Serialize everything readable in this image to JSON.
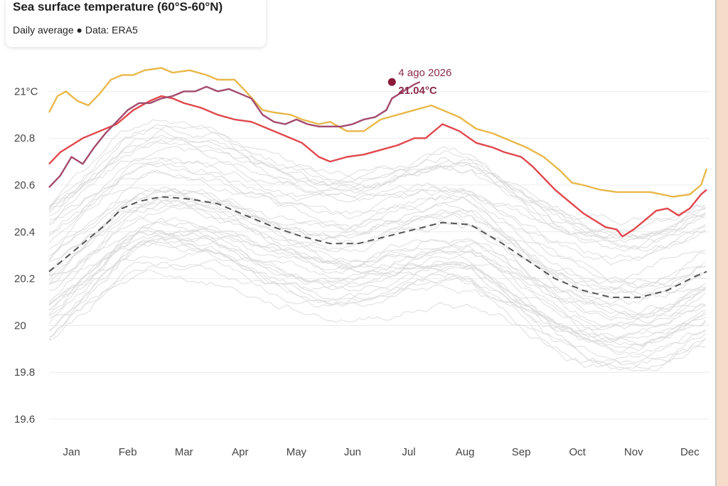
{
  "header": {
    "title": "Sea surface temperature (60°S-60°N)",
    "subtitle": "Daily average ● Data: ERA5"
  },
  "chart_data": {
    "type": "line",
    "title": "Sea surface temperature (60°S-60°N)",
    "subtitle": "Daily average ● Data: ERA5",
    "xlabel": "",
    "ylabel": "",
    "ylim": [
      19.55,
      21.05
    ],
    "y_ticks": [
      19.6,
      19.8,
      20,
      20.2,
      20.4,
      20.6,
      20.8,
      21
    ],
    "y_tick_labels": [
      "19.6",
      "19.8",
      "20",
      "20.2",
      "20.4",
      "20.6",
      "20.8",
      "21°C"
    ],
    "x_labels": [
      "Jan",
      "Feb",
      "Mar",
      "Apr",
      "May",
      "Jun",
      "Jul",
      "Aug",
      "Sep",
      "Oct",
      "Nov",
      "Dec"
    ],
    "x_unit": "month (1 = start of Jan, 13 = end of Dec)",
    "grid": true,
    "annotation": {
      "date": "4 ago 2026",
      "value": "21.04°C",
      "x": 7.1,
      "y": 21.04
    },
    "series": [
      {
        "color": "#e8b84a",
        "points": [
          [
            1.0,
            20.91
          ],
          [
            1.15,
            20.98
          ],
          [
            1.3,
            21.0
          ],
          [
            1.5,
            20.96
          ],
          [
            1.7,
            20.94
          ],
          [
            1.9,
            20.99
          ],
          [
            2.1,
            21.05
          ],
          [
            2.3,
            21.07
          ],
          [
            2.5,
            21.07
          ],
          [
            2.7,
            21.09
          ],
          [
            3.0,
            21.1
          ],
          [
            3.2,
            21.08
          ],
          [
            3.5,
            21.09
          ],
          [
            3.8,
            21.07
          ],
          [
            4.0,
            21.05
          ],
          [
            4.3,
            21.05
          ],
          [
            4.5,
            21.0
          ],
          [
            4.8,
            20.92
          ],
          [
            5.0,
            20.91
          ],
          [
            5.3,
            20.9
          ],
          [
            5.5,
            20.88
          ],
          [
            5.8,
            20.86
          ],
          [
            6.0,
            20.87
          ],
          [
            6.3,
            20.83
          ],
          [
            6.6,
            20.83
          ],
          [
            6.9,
            20.88
          ],
          [
            7.2,
            20.9
          ],
          [
            7.5,
            20.92
          ],
          [
            7.8,
            20.94
          ],
          [
            8.0,
            20.92
          ],
          [
            8.3,
            20.89
          ],
          [
            8.6,
            20.84
          ],
          [
            8.9,
            20.82
          ],
          [
            9.2,
            20.79
          ],
          [
            9.5,
            20.76
          ],
          [
            9.8,
            20.72
          ],
          [
            10.1,
            20.66
          ],
          [
            10.3,
            20.61
          ],
          [
            10.5,
            20.6
          ],
          [
            10.8,
            20.58
          ],
          [
            11.1,
            20.57
          ],
          [
            11.4,
            20.57
          ],
          [
            11.7,
            20.57
          ],
          [
            11.9,
            20.56
          ],
          [
            12.1,
            20.55
          ],
          [
            12.4,
            20.56
          ],
          [
            12.6,
            20.6
          ],
          [
            12.7,
            20.67
          ]
        ]
      },
      {
        "color": "#e0474c",
        "points": [
          [
            1.0,
            20.69
          ],
          [
            1.2,
            20.74
          ],
          [
            1.4,
            20.77
          ],
          [
            1.6,
            20.8
          ],
          [
            1.9,
            20.83
          ],
          [
            2.2,
            20.86
          ],
          [
            2.5,
            20.92
          ],
          [
            2.8,
            20.96
          ],
          [
            3.0,
            20.98
          ],
          [
            3.2,
            20.97
          ],
          [
            3.4,
            20.95
          ],
          [
            3.7,
            20.93
          ],
          [
            4.0,
            20.9
          ],
          [
            4.3,
            20.88
          ],
          [
            4.6,
            20.87
          ],
          [
            4.9,
            20.84
          ],
          [
            5.2,
            20.81
          ],
          [
            5.5,
            20.78
          ],
          [
            5.8,
            20.72
          ],
          [
            6.0,
            20.7
          ],
          [
            6.3,
            20.72
          ],
          [
            6.6,
            20.73
          ],
          [
            6.9,
            20.75
          ],
          [
            7.2,
            20.77
          ],
          [
            7.5,
            20.8
          ],
          [
            7.7,
            20.8
          ],
          [
            7.9,
            20.84
          ],
          [
            8.0,
            20.86
          ],
          [
            8.3,
            20.83
          ],
          [
            8.6,
            20.78
          ],
          [
            8.9,
            20.76
          ],
          [
            9.1,
            20.74
          ],
          [
            9.4,
            20.72
          ],
          [
            9.6,
            20.68
          ],
          [
            9.8,
            20.63
          ],
          [
            10.0,
            20.58
          ],
          [
            10.3,
            20.52
          ],
          [
            10.5,
            20.48
          ],
          [
            10.7,
            20.45
          ],
          [
            10.9,
            20.42
          ],
          [
            11.1,
            20.41
          ],
          [
            11.2,
            20.38
          ],
          [
            11.4,
            20.41
          ],
          [
            11.6,
            20.45
          ],
          [
            11.8,
            20.49
          ],
          [
            12.0,
            20.5
          ],
          [
            12.2,
            20.47
          ],
          [
            12.4,
            20.5
          ],
          [
            12.6,
            20.56
          ],
          [
            12.7,
            20.58
          ]
        ]
      },
      {
        "color": "#a34a6e",
        "points": [
          [
            1.0,
            20.59
          ],
          [
            1.2,
            20.64
          ],
          [
            1.4,
            20.72
          ],
          [
            1.6,
            20.69
          ],
          [
            1.8,
            20.76
          ],
          [
            2.0,
            20.82
          ],
          [
            2.2,
            20.87
          ],
          [
            2.4,
            20.92
          ],
          [
            2.6,
            20.95
          ],
          [
            2.8,
            20.95
          ],
          [
            3.0,
            20.97
          ],
          [
            3.2,
            20.98
          ],
          [
            3.4,
            21.0
          ],
          [
            3.6,
            21.0
          ],
          [
            3.8,
            21.02
          ],
          [
            4.0,
            21.0
          ],
          [
            4.2,
            21.01
          ],
          [
            4.4,
            20.99
          ],
          [
            4.6,
            20.97
          ],
          [
            4.8,
            20.9
          ],
          [
            5.0,
            20.87
          ],
          [
            5.2,
            20.86
          ],
          [
            5.4,
            20.88
          ],
          [
            5.6,
            20.86
          ],
          [
            5.8,
            20.85
          ],
          [
            6.0,
            20.85
          ],
          [
            6.2,
            20.85
          ],
          [
            6.4,
            20.86
          ],
          [
            6.6,
            20.88
          ],
          [
            6.8,
            20.89
          ],
          [
            7.0,
            20.92
          ],
          [
            7.1,
            20.97
          ],
          [
            7.3,
            21.0
          ],
          [
            7.5,
            21.03
          ],
          [
            7.6,
            21.04
          ]
        ]
      },
      {
        "color": "#555555",
        "dashed": true,
        "points": [
          [
            1.0,
            20.23
          ],
          [
            1.3,
            20.29
          ],
          [
            1.6,
            20.35
          ],
          [
            2.0,
            20.43
          ],
          [
            2.3,
            20.5
          ],
          [
            2.6,
            20.53
          ],
          [
            3.0,
            20.55
          ],
          [
            3.5,
            20.54
          ],
          [
            4.0,
            20.52
          ],
          [
            4.5,
            20.47
          ],
          [
            5.0,
            20.42
          ],
          [
            5.5,
            20.38
          ],
          [
            6.0,
            20.35
          ],
          [
            6.5,
            20.35
          ],
          [
            7.0,
            20.38
          ],
          [
            7.5,
            20.41
          ],
          [
            8.0,
            20.44
          ],
          [
            8.5,
            20.43
          ],
          [
            9.0,
            20.36
          ],
          [
            9.5,
            20.28
          ],
          [
            10.0,
            20.2
          ],
          [
            10.5,
            20.15
          ],
          [
            11.0,
            20.12
          ],
          [
            11.5,
            20.12
          ],
          [
            12.0,
            20.15
          ],
          [
            12.5,
            20.21
          ],
          [
            12.7,
            20.23
          ]
        ]
      }
    ]
  }
}
